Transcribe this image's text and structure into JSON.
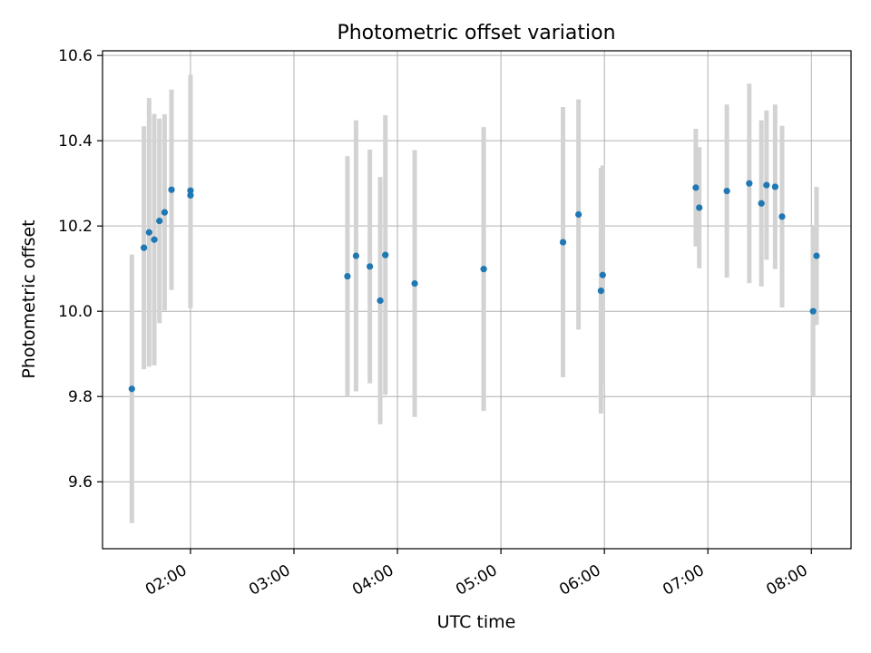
{
  "chart_data": {
    "type": "scatter",
    "title": "Photometric offset variation",
    "xlabel": "UTC time",
    "ylabel": "Photometric offset",
    "xlim": [
      "01:09",
      "08:23"
    ],
    "ylim": [
      9.443,
      10.611
    ],
    "xticks": [
      "02:00",
      "03:00",
      "04:00",
      "05:00",
      "06:00",
      "07:00",
      "08:00"
    ],
    "yticks": [
      9.6,
      9.8,
      10.0,
      10.2,
      10.4,
      10.6
    ],
    "grid": true,
    "legend": "none",
    "colors": {
      "point": "#1f77b4",
      "errorbar": "#d3d3d3",
      "grid": "#b0b0b0"
    },
    "points": [
      {
        "x": "01:26",
        "y": 9.818,
        "err": 0.315
      },
      {
        "x": "01:33",
        "y": 10.149,
        "err": 0.285
      },
      {
        "x": "01:36",
        "y": 10.185,
        "err": 0.315
      },
      {
        "x": "01:39",
        "y": 10.168,
        "err": 0.295
      },
      {
        "x": "01:42",
        "y": 10.212,
        "err": 0.24
      },
      {
        "x": "01:45",
        "y": 10.232,
        "err": 0.23
      },
      {
        "x": "01:49",
        "y": 10.285,
        "err": 0.235
      },
      {
        "x": "02:00",
        "y": 10.283,
        "err": 0.272
      },
      {
        "x": "02:00",
        "y": 10.272,
        "err": 0.265
      },
      {
        "x": "03:31",
        "y": 10.082,
        "err": 0.282
      },
      {
        "x": "03:36",
        "y": 10.13,
        "err": 0.318
      },
      {
        "x": "03:44",
        "y": 10.105,
        "err": 0.274
      },
      {
        "x": "03:50",
        "y": 10.025,
        "err": 0.29
      },
      {
        "x": "03:53",
        "y": 10.132,
        "err": 0.328
      },
      {
        "x": "04:10",
        "y": 10.065,
        "err": 0.313
      },
      {
        "x": "04:50",
        "y": 10.099,
        "err": 0.333
      },
      {
        "x": "05:36",
        "y": 10.162,
        "err": 0.317
      },
      {
        "x": "05:45",
        "y": 10.227,
        "err": 0.27
      },
      {
        "x": "05:58",
        "y": 10.048,
        "err": 0.288
      },
      {
        "x": "05:59",
        "y": 10.085,
        "err": 0.257
      },
      {
        "x": "06:53",
        "y": 10.29,
        "err": 0.138
      },
      {
        "x": "06:55",
        "y": 10.243,
        "err": 0.142
      },
      {
        "x": "07:11",
        "y": 10.282,
        "err": 0.203
      },
      {
        "x": "07:24",
        "y": 10.3,
        "err": 0.234
      },
      {
        "x": "07:31",
        "y": 10.253,
        "err": 0.195
      },
      {
        "x": "07:34",
        "y": 10.296,
        "err": 0.175
      },
      {
        "x": "07:39",
        "y": 10.292,
        "err": 0.193
      },
      {
        "x": "07:43",
        "y": 10.222,
        "err": 0.213
      },
      {
        "x": "08:01",
        "y": 10.0,
        "err": 0.2
      },
      {
        "x": "08:03",
        "y": 10.13,
        "err": 0.162
      }
    ]
  }
}
